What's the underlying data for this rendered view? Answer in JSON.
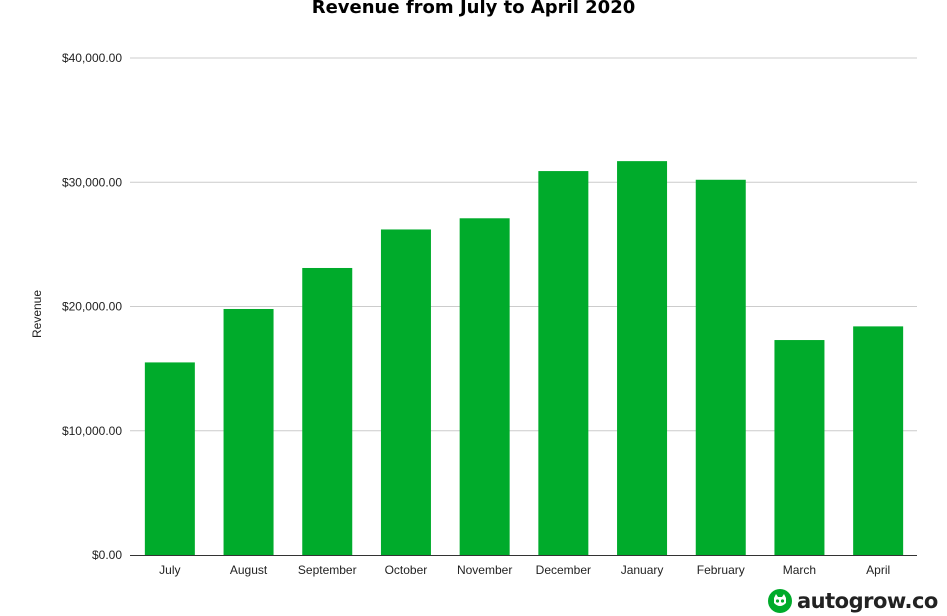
{
  "chart_data": {
    "type": "bar",
    "title": "Revenue from July to April 2020",
    "xlabel": "",
    "ylabel": "Revenue",
    "categories": [
      "July",
      "August",
      "September",
      "October",
      "November",
      "December",
      "January",
      "February",
      "March",
      "April"
    ],
    "values": [
      15500,
      19800,
      23100,
      26200,
      27100,
      30900,
      31700,
      30200,
      17300,
      18400
    ],
    "ylim": [
      0,
      40000
    ],
    "yticks": [
      0,
      10000,
      20000,
      30000,
      40000
    ],
    "ytick_labels": [
      "$0.00",
      "$10,000.00",
      "$20,000.00",
      "$30,000.00",
      "$40,000.00"
    ],
    "grid": true,
    "bar_color": "#00ab2b"
  },
  "logo": {
    "text": "autogrow.co",
    "color": "#00ab2b"
  }
}
